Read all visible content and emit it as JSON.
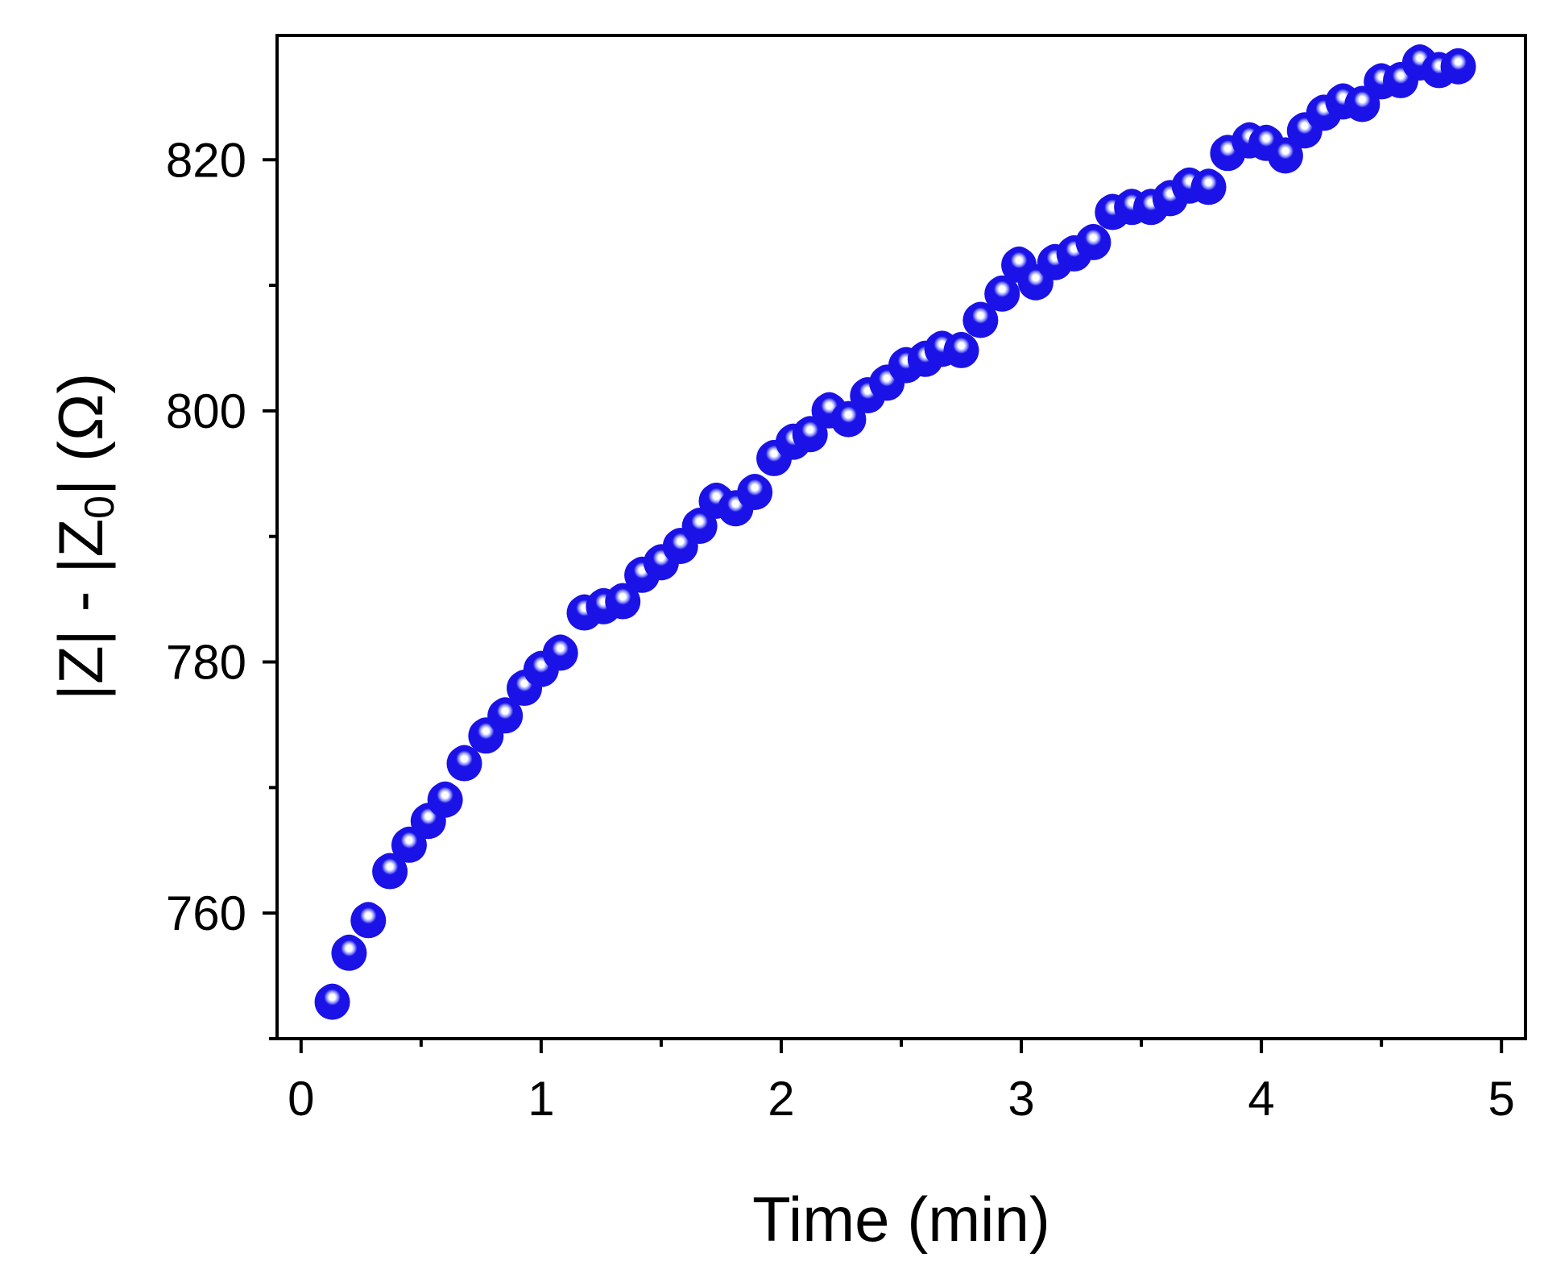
{
  "chart_data": {
    "type": "scatter",
    "xlabel": "Time (min)",
    "ylabel": {
      "parts": [
        "|Z| - |Z",
        "0",
        "| (Ω)"
      ]
    },
    "xlim": [
      -0.1,
      5.1
    ],
    "ylim": [
      750,
      829.9
    ],
    "xticks": [
      0,
      1,
      2,
      3,
      4,
      5
    ],
    "yticks": [
      760,
      780,
      800,
      820
    ],
    "marker_color": "#1a12e6",
    "marker_highlight": "#9aa0ff",
    "grid": false,
    "series": [
      {
        "x": [
          0.13,
          0.2,
          0.28,
          0.37,
          0.45,
          0.53,
          0.6,
          0.68,
          0.77,
          0.85,
          0.93,
          1.0,
          1.08,
          1.18,
          1.26,
          1.34,
          1.42,
          1.5,
          1.58,
          1.66,
          1.73,
          1.81,
          1.89,
          1.97,
          2.05,
          2.12,
          2.2,
          2.28,
          2.36,
          2.44,
          2.52,
          2.6,
          2.67,
          2.75,
          2.83,
          2.92,
          2.99,
          3.06,
          3.14,
          3.22,
          3.3,
          3.38,
          3.46,
          3.54,
          3.62,
          3.7,
          3.78,
          3.86,
          3.95,
          4.02,
          4.1,
          4.18,
          4.26,
          4.34,
          4.42,
          4.5,
          4.58,
          4.66,
          4.74,
          4.82
        ],
        "y": [
          753.3,
          757.2,
          759.8,
          763.7,
          765.8,
          767.7,
          769.4,
          772.3,
          774.5,
          776.1,
          778.3,
          779.8,
          781.1,
          784.3,
          784.8,
          785.2,
          787.3,
          788.3,
          789.6,
          791.2,
          793.2,
          792.6,
          793.9,
          796.6,
          797.9,
          798.5,
          800.4,
          799.7,
          801.6,
          802.6,
          804.0,
          804.5,
          805.3,
          805.2,
          807.6,
          809.7,
          812.0,
          810.6,
          812.2,
          812.9,
          813.8,
          816.2,
          816.6,
          816.6,
          817.3,
          818.3,
          818.2,
          820.9,
          821.9,
          821.7,
          820.7,
          822.7,
          824.1,
          825.0,
          824.8,
          826.6,
          826.7,
          828.1,
          827.5,
          827.8
        ]
      }
    ]
  }
}
